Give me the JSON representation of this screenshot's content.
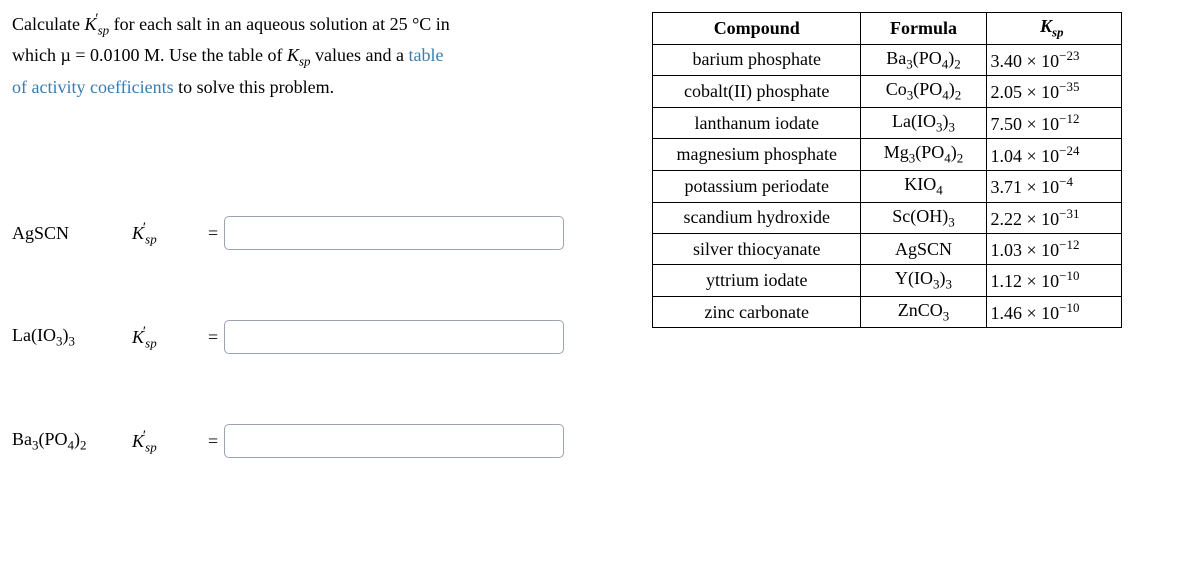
{
  "prompt": {
    "line1_a": "Calculate ",
    "line1_b": " for each salt in an aqueous solution at 25 °C in",
    "line2_a": "which µ = 0.0100 M. Use the table of ",
    "line2_b": " values and a ",
    "line2_link": "table",
    "line3_link": "of activity coefficients",
    "line3_rest": " to solve this problem."
  },
  "ksp_prime_symbol": "K",
  "ksp_prime_sub": "sp",
  "ksp_symbol": "K",
  "ksp_sub": "sp",
  "inputs": [
    {
      "label_html": "AgSCN",
      "eq": "="
    },
    {
      "label_html": "La(IO3)3",
      "eq": "="
    },
    {
      "label_html": "Ba3(PO4)2",
      "eq": "="
    }
  ],
  "table": {
    "headers": {
      "compound": "Compound",
      "formula": "Formula",
      "ksp": "K",
      "ksp_sub": "sp"
    },
    "rows": [
      {
        "compound": "barium phosphate",
        "formula_base": "Ba3(PO4)2",
        "ksp_val": "3.40 × 10",
        "ksp_exp": "−23"
      },
      {
        "compound": "cobalt(II) phosphate",
        "formula_base": "Co3(PO4)2",
        "ksp_val": "2.05 × 10",
        "ksp_exp": "−35"
      },
      {
        "compound": "lanthanum iodate",
        "formula_base": "La(IO3)3",
        "ksp_val": "7.50 × 10",
        "ksp_exp": "−12"
      },
      {
        "compound": "magnesium phosphate",
        "formula_base": "Mg3(PO4)2",
        "ksp_val": "1.04 × 10",
        "ksp_exp": "−24"
      },
      {
        "compound": "potassium periodate",
        "formula_base": "KIO4",
        "ksp_val": "3.71 × 10",
        "ksp_exp": "−4"
      },
      {
        "compound": "scandium hydroxide",
        "formula_base": "Sc(OH)3",
        "ksp_val": "2.22 × 10",
        "ksp_exp": "−31"
      },
      {
        "compound": "silver thiocyanate",
        "formula_base": "AgSCN",
        "ksp_val": "1.03 × 10",
        "ksp_exp": "−12"
      },
      {
        "compound": "yttrium iodate",
        "formula_base": "Y(IO3)3",
        "ksp_val": "1.12 × 10",
        "ksp_exp": "−10"
      },
      {
        "compound": "zinc carbonate",
        "formula_base": "ZnCO3",
        "ksp_val": "1.46 × 10",
        "ksp_exp": "−10"
      }
    ]
  },
  "colors": {
    "link": "#3a7db0",
    "border": "#9ca3af",
    "table_border": "#000000",
    "text": "#000000",
    "background": "#ffffff"
  }
}
